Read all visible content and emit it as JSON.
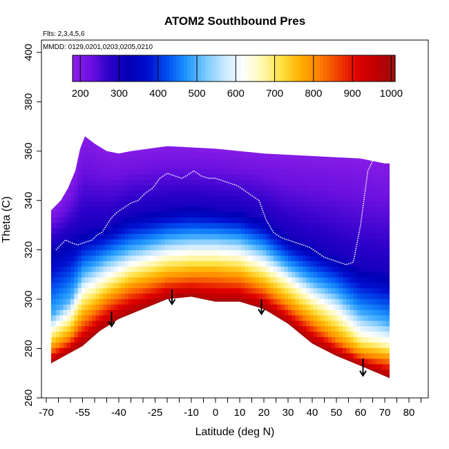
{
  "chart_data": {
    "type": "heatmap",
    "title": "ATOM2 Southbound Pres",
    "xlabel": "Latitude (deg N)",
    "ylabel": "Theta (C)",
    "annotations": {
      "flights": "Flts: 2,3,4,5,6",
      "dates": "MMDD: 0129,0201,0203,0205,0210"
    },
    "xlim": [
      -72,
      88
    ],
    "ylim": [
      260,
      405
    ],
    "x_ticks": [
      -70,
      -55,
      -40,
      -25,
      -10,
      0,
      10,
      20,
      30,
      40,
      50,
      60,
      70,
      80
    ],
    "x_tick_labels": [
      "-70",
      "-55",
      "-40",
      "-25",
      "-10",
      "0",
      "10",
      "20",
      "30",
      "40",
      "50",
      "60",
      "70",
      "80"
    ],
    "x_minor_ticks": [
      -65,
      -60,
      -50,
      -45,
      -35,
      -30,
      -20,
      -15,
      -5,
      5,
      15,
      25,
      35,
      45,
      55,
      65,
      75,
      85
    ],
    "y_ticks": [
      260,
      280,
      300,
      320,
      340,
      360,
      380,
      400
    ],
    "y_tick_labels": [
      "260",
      "280",
      "300",
      "320",
      "340",
      "360",
      "380",
      "400"
    ],
    "colorbar": {
      "min": 180,
      "max": 1010,
      "ticks": [
        200,
        300,
        400,
        500,
        600,
        700,
        800,
        900,
        1000
      ],
      "tick_labels": [
        "200",
        "300",
        "400",
        "500",
        "600",
        "700",
        "800",
        "900",
        "1000"
      ],
      "colors": [
        "#8c1ee8",
        "#6a10e0",
        "#2a00c8",
        "#0000b4",
        "#0010d0",
        "#0050f0",
        "#1e96ff",
        "#78c8ff",
        "#c8e8ff",
        "#ffffff",
        "#fff8b0",
        "#ffe040",
        "#ffb000",
        "#ff8000",
        "#f04000",
        "#e00000",
        "#c00000",
        "#9a1010"
      ]
    },
    "surface_theta": [
      [
        -68,
        274
      ],
      [
        -55,
        281
      ],
      [
        -48,
        287
      ],
      [
        -40,
        292
      ],
      [
        -30,
        296
      ],
      [
        -20,
        300
      ],
      [
        -10,
        301
      ],
      [
        0,
        299
      ],
      [
        10,
        299
      ],
      [
        20,
        296
      ],
      [
        30,
        290
      ],
      [
        40,
        282
      ],
      [
        50,
        277
      ],
      [
        60,
        273
      ],
      [
        72,
        268
      ]
    ],
    "upper_theta": [
      [
        -68,
        336
      ],
      [
        -64,
        340
      ],
      [
        -61,
        345
      ],
      [
        -58,
        352
      ],
      [
        -56,
        361
      ],
      [
        -54,
        366
      ],
      [
        -50,
        363
      ],
      [
        -45,
        360
      ],
      [
        -40,
        359
      ],
      [
        -35,
        360
      ],
      [
        -20,
        362
      ],
      [
        0,
        361
      ],
      [
        20,
        359
      ],
      [
        40,
        358
      ],
      [
        60,
        357
      ],
      [
        70,
        355
      ]
    ],
    "contour_theta": {
      "p300": [
        [
          -68,
          322
        ],
        [
          -55,
          328
        ],
        [
          -45,
          330
        ],
        [
          -35,
          335
        ],
        [
          -20,
          337
        ],
        [
          -10,
          338
        ],
        [
          0,
          337
        ],
        [
          10,
          336
        ],
        [
          20,
          333
        ],
        [
          30,
          326
        ],
        [
          40,
          322
        ],
        [
          50,
          318
        ],
        [
          60,
          313
        ],
        [
          72,
          311
        ]
      ],
      "p500": [
        [
          -68,
          293
        ],
        [
          -60,
          300
        ],
        [
          -55,
          310
        ],
        [
          -45,
          316
        ],
        [
          -35,
          320
        ],
        [
          -20,
          324
        ],
        [
          -10,
          325
        ],
        [
          0,
          325
        ],
        [
          10,
          324
        ],
        [
          20,
          320
        ],
        [
          30,
          313
        ],
        [
          40,
          307
        ],
        [
          50,
          302
        ],
        [
          60,
          294
        ],
        [
          72,
          290
        ]
      ],
      "p650": [
        [
          -68,
          287
        ],
        [
          -60,
          293
        ],
        [
          -55,
          302
        ],
        [
          -45,
          308
        ],
        [
          -35,
          313
        ],
        [
          -20,
          317
        ],
        [
          -10,
          318
        ],
        [
          0,
          318
        ],
        [
          10,
          317
        ],
        [
          20,
          313
        ],
        [
          30,
          307
        ],
        [
          40,
          300
        ],
        [
          50,
          294
        ],
        [
          60,
          285
        ],
        [
          72,
          282
        ]
      ],
      "p800": [
        [
          -68,
          280
        ],
        [
          -60,
          285
        ],
        [
          -55,
          292
        ],
        [
          -45,
          300
        ],
        [
          -35,
          305
        ],
        [
          -20,
          309
        ],
        [
          -10,
          310
        ],
        [
          0,
          310
        ],
        [
          10,
          309
        ],
        [
          20,
          305
        ],
        [
          30,
          298
        ],
        [
          40,
          291
        ],
        [
          50,
          284
        ],
        [
          60,
          278
        ],
        [
          72,
          276
        ]
      ]
    },
    "flight_track": [
      [
        -66,
        320
      ],
      [
        -64,
        322
      ],
      [
        -62,
        324
      ],
      [
        -60,
        323
      ],
      [
        -57,
        322
      ],
      [
        -54,
        323
      ],
      [
        -51,
        324
      ],
      [
        -49,
        326
      ],
      [
        -47,
        327
      ],
      [
        -45,
        330
      ],
      [
        -43,
        333
      ],
      [
        -41,
        335
      ],
      [
        -38,
        337
      ],
      [
        -35,
        339
      ],
      [
        -32,
        340
      ],
      [
        -29,
        343
      ],
      [
        -26,
        345
      ],
      [
        -23,
        349
      ],
      [
        -20,
        351
      ],
      [
        -17,
        350
      ],
      [
        -14,
        349
      ],
      [
        -12,
        350
      ],
      [
        -9,
        352
      ],
      [
        -6,
        350
      ],
      [
        -3,
        349
      ],
      [
        0,
        349
      ],
      [
        3,
        348
      ],
      [
        6,
        347
      ],
      [
        9,
        346
      ],
      [
        12,
        344
      ],
      [
        15,
        342
      ],
      [
        18,
        340
      ],
      [
        21,
        332
      ],
      [
        24,
        327
      ],
      [
        27,
        325
      ],
      [
        30,
        324
      ],
      [
        33,
        323
      ],
      [
        36,
        322
      ],
      [
        39,
        321
      ],
      [
        42,
        319
      ],
      [
        45,
        317
      ],
      [
        48,
        316
      ],
      [
        51,
        315
      ],
      [
        54,
        314
      ],
      [
        57,
        315
      ],
      [
        60,
        330
      ],
      [
        63,
        352
      ],
      [
        66,
        358
      ],
      [
        68,
        356
      ]
    ],
    "profile_arrows": [
      {
        "lat": -43,
        "theta_top": 295,
        "theta_bottom": 289
      },
      {
        "lat": -18,
        "theta_top": 304,
        "theta_bottom": 298
      },
      {
        "lat": 19,
        "theta_top": 300,
        "theta_bottom": 294
      },
      {
        "lat": 61,
        "theta_top": 276,
        "theta_bottom": 269
      }
    ]
  }
}
